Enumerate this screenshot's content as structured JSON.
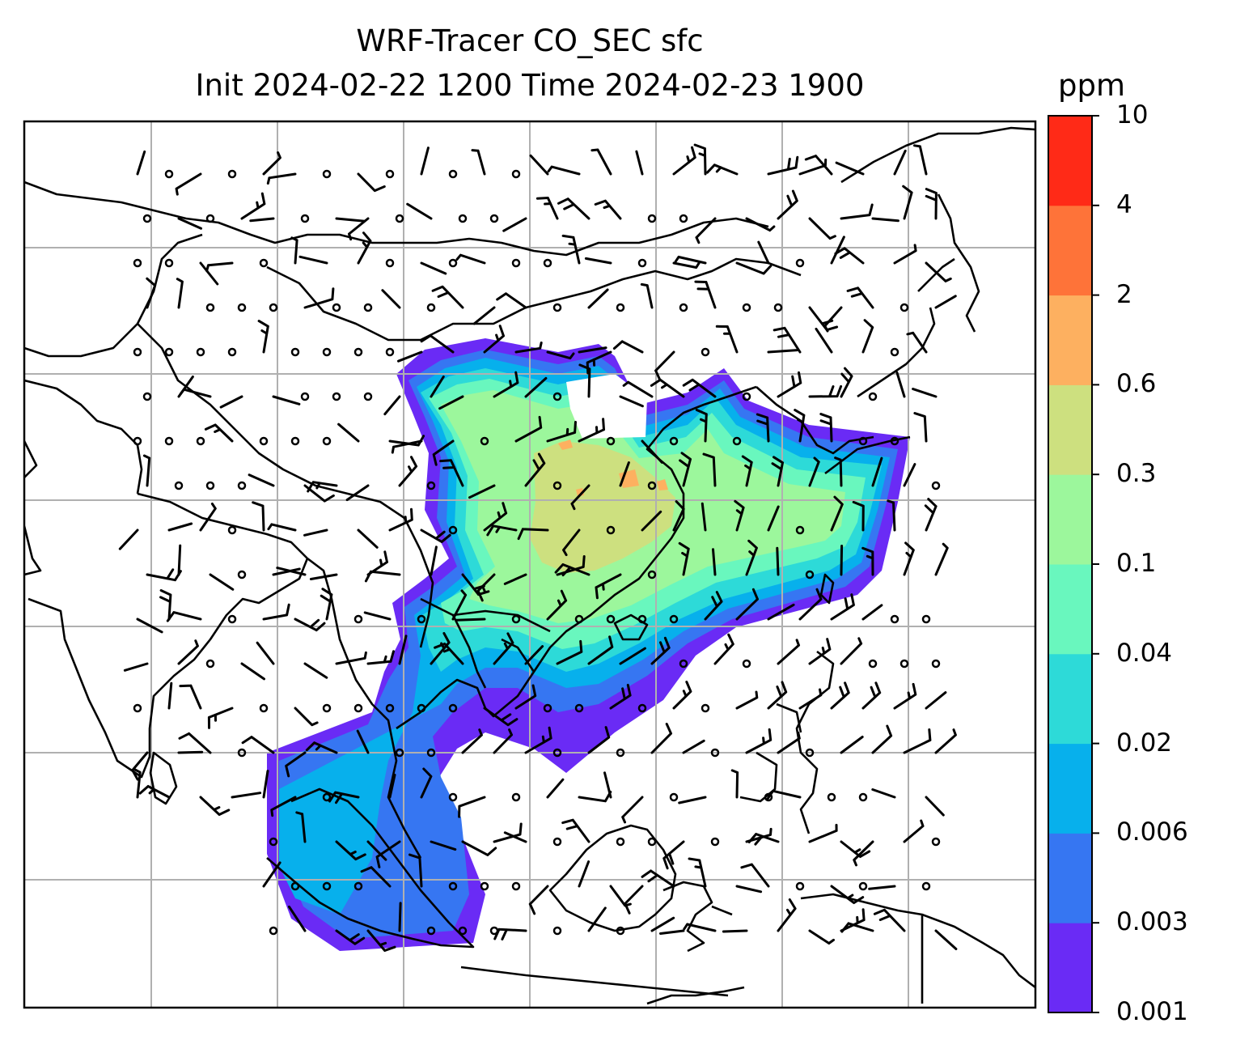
{
  "title": {
    "line1": "WRF-Tracer CO_SEC sfc",
    "line2": "Init 2024-02-22 1200 Time 2024-02-23 1900"
  },
  "colorbar": {
    "unit": "ppm",
    "levels": [
      "0.001",
      "0.003",
      "0.006",
      "0.02",
      "0.04",
      "0.1",
      "0.3",
      "0.6",
      "2",
      "4",
      "10"
    ],
    "colors": [
      "#6a2bf5",
      "#3676f2",
      "#07b0ec",
      "#2ddad8",
      "#69f7be",
      "#9cf79c",
      "#cde07f",
      "#fdb060",
      "#fe7339",
      "#ff2a17"
    ]
  },
  "map": {
    "gridlines": true,
    "overlay": "wind barbs",
    "region": "South and East Asia"
  }
}
